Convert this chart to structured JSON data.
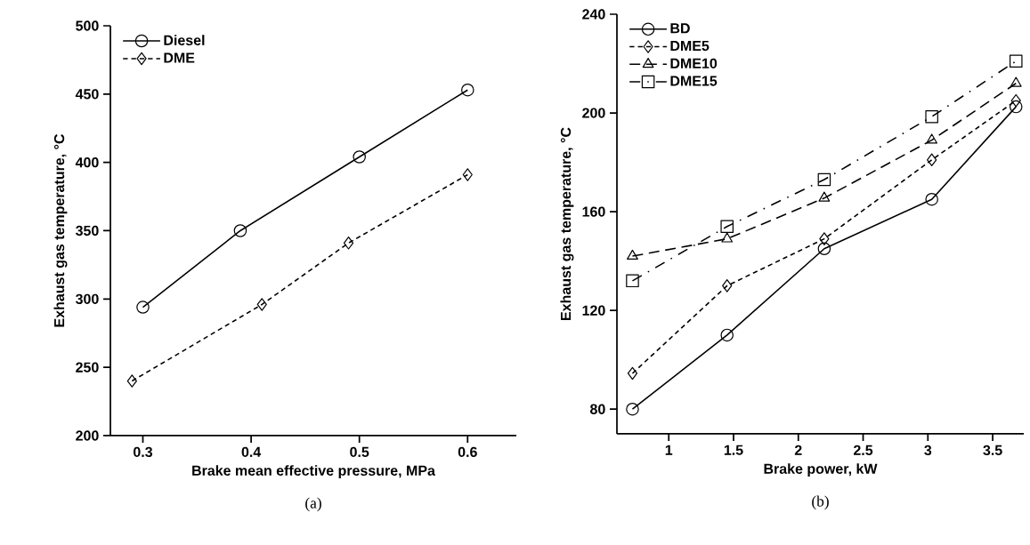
{
  "chart_data": [
    {
      "type": "line",
      "xlabel": "Brake mean effective pressure, MPa",
      "ylabel": "Exhaust gas temperature, °C",
      "annotations": [
        "(a)"
      ],
      "legend": "top left",
      "xlim": [
        0.27,
        0.645
      ],
      "ylim": [
        200,
        500
      ],
      "xticks": [
        0.3,
        0.4,
        0.5,
        0.6
      ],
      "yticks": [
        200,
        250,
        300,
        350,
        400,
        450,
        500
      ],
      "grid": false,
      "series": [
        {
          "name": "Diesel",
          "color": "#000000",
          "marker": "circle",
          "line_style": "solid",
          "x": [
            0.3,
            0.39,
            0.5,
            0.6
          ],
          "values": [
            294,
            350,
            404,
            453
          ]
        },
        {
          "name": "DME",
          "color": "#000000",
          "marker": "diamond",
          "line_style": "dotted",
          "x": [
            0.29,
            0.41,
            0.49,
            0.6
          ],
          "values": [
            240,
            296,
            341,
            391
          ]
        }
      ]
    },
    {
      "type": "line",
      "xlabel": "Brake power, kW",
      "ylabel": "Exhaust gas temperature, °C",
      "annotations": [
        "(b)"
      ],
      "legend": "top left",
      "xlim": [
        0.6,
        3.74
      ],
      "ylim": [
        70,
        240
      ],
      "xticks": [
        1,
        1.5,
        2,
        2.5,
        3,
        3.5
      ],
      "yticks": [
        80,
        120,
        160,
        200,
        240
      ],
      "grid": false,
      "series": [
        {
          "name": "BD",
          "color": "#000000",
          "marker": "circle",
          "line_style": "solid",
          "x": [
            0.72,
            1.45,
            2.2,
            3.03,
            3.68
          ],
          "values": [
            80,
            110,
            145,
            165,
            202.5
          ]
        },
        {
          "name": "DME5",
          "color": "#000000",
          "marker": "diamond",
          "line_style": "dotted",
          "x": [
            0.72,
            1.45,
            2.2,
            3.03,
            3.68
          ],
          "values": [
            94.5,
            130,
            149,
            181,
            205
          ]
        },
        {
          "name": "DME10",
          "color": "#000000",
          "marker": "triangle",
          "line_style": "dashed",
          "x": [
            0.72,
            1.45,
            2.2,
            3.03,
            3.68
          ],
          "values": [
            142,
            149,
            165.5,
            189,
            212
          ]
        },
        {
          "name": "DME15",
          "color": "#000000",
          "marker": "square",
          "line_style": "dashdot",
          "x": [
            0.72,
            1.45,
            2.2,
            3.03,
            3.68
          ],
          "values": [
            132,
            154,
            173,
            198.5,
            221
          ]
        }
      ]
    }
  ]
}
